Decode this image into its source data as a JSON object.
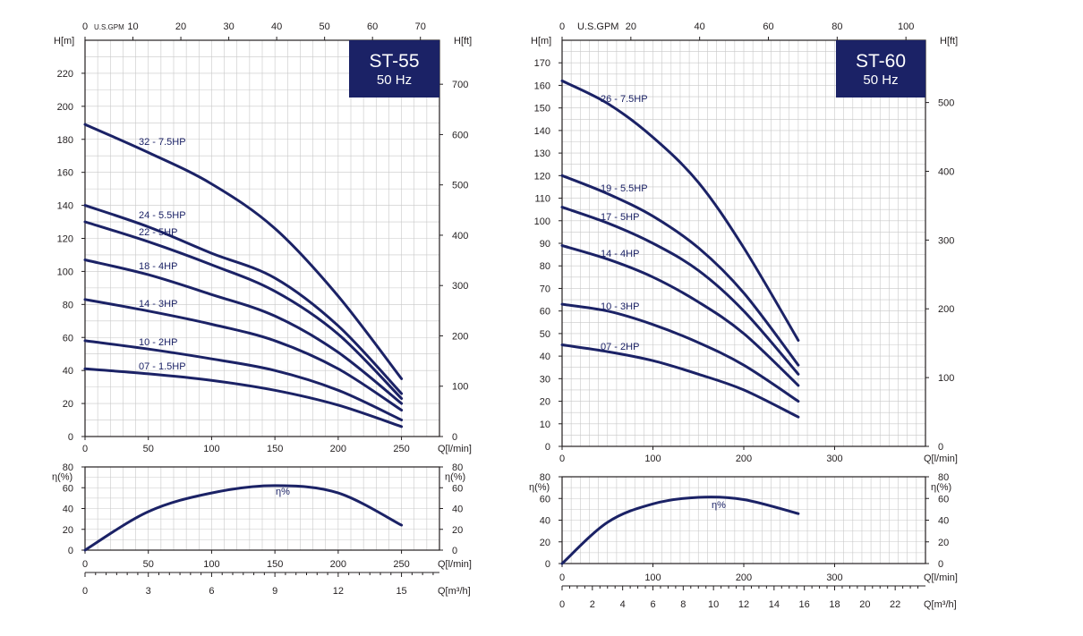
{
  "colors": {
    "curve": "#1b2266",
    "title_box": "#1b2266",
    "grid": "#c8c8c8",
    "axis": "#231f20"
  },
  "chart_data": [
    {
      "id": "st55",
      "type": "line",
      "title": "ST-55",
      "subtitle": "50 Hz",
      "xlabel": "Q[l/min]",
      "ylabel_left": "H[m]",
      "ylabel_right": "H[ft]",
      "xlabel_top": "U.S.GPM",
      "xlim": [
        0,
        280
      ],
      "ylim": [
        0,
        240
      ],
      "xticks": [
        0,
        50,
        100,
        150,
        200,
        250
      ],
      "yticks": [
        0,
        20,
        40,
        60,
        80,
        100,
        120,
        140,
        160,
        180,
        200,
        220
      ],
      "ft_ticks": [
        0,
        100,
        200,
        300,
        400,
        500,
        600,
        700
      ],
      "gpm_ticks": [
        0,
        10,
        20,
        30,
        40,
        50,
        60,
        70
      ],
      "grid": true,
      "series": [
        {
          "name": "32 - 7.5HP",
          "x": [
            0,
            50,
            100,
            150,
            200,
            250
          ],
          "y": [
            189,
            172,
            153,
            126,
            85,
            35
          ]
        },
        {
          "name": "24 - 5.5HP",
          "x": [
            0,
            50,
            100,
            150,
            200,
            250
          ],
          "y": [
            140,
            127,
            111,
            96,
            67,
            26
          ]
        },
        {
          "name": "22 - 5HP",
          "x": [
            0,
            50,
            100,
            150,
            200,
            250
          ],
          "y": [
            130,
            118,
            104,
            88,
            62,
            23
          ]
        },
        {
          "name": "18 - 4HP",
          "x": [
            0,
            50,
            100,
            150,
            200,
            250
          ],
          "y": [
            107,
            98,
            86,
            73,
            51,
            20
          ]
        },
        {
          "name": "14 - 3HP",
          "x": [
            0,
            50,
            100,
            150,
            200,
            250
          ],
          "y": [
            83,
            76,
            68,
            58,
            41,
            16
          ]
        },
        {
          "name": "10 - 2HP",
          "x": [
            0,
            50,
            100,
            150,
            200,
            250
          ],
          "y": [
            58,
            53,
            47,
            40,
            28,
            10
          ]
        },
        {
          "name": "07 - 1.5HP",
          "x": [
            0,
            50,
            100,
            150,
            200,
            250
          ],
          "y": [
            41,
            38,
            34,
            28,
            19,
            6
          ]
        }
      ],
      "efficiency": {
        "label": "η%",
        "ylabel": "η(%)",
        "ylim": [
          0,
          80
        ],
        "yticks": [
          0,
          20,
          40,
          60,
          80
        ],
        "x": [
          0,
          50,
          100,
          150,
          200,
          250
        ],
        "y": [
          0,
          37,
          55,
          62,
          55,
          24
        ]
      },
      "m3h_label": "Q[m³/h]",
      "m3h_ticks": [
        0,
        3,
        6,
        9,
        12,
        15
      ]
    },
    {
      "id": "st60",
      "type": "line",
      "title": "ST-60",
      "subtitle": "50 Hz",
      "xlabel": "Q[l/min]",
      "ylabel_left": "H[m]",
      "ylabel_right": "H[ft]",
      "xlabel_top": "U.S.GPM",
      "xlim": [
        0,
        400
      ],
      "ylim": [
        0,
        180
      ],
      "xticks": [
        0,
        100,
        200,
        300
      ],
      "yticks": [
        0,
        10,
        20,
        30,
        40,
        50,
        60,
        70,
        80,
        90,
        100,
        110,
        120,
        130,
        140,
        150,
        160,
        170
      ],
      "ft_ticks": [
        0,
        100,
        200,
        300,
        400,
        500
      ],
      "gpm_ticks": [
        0,
        20,
        40,
        60,
        80,
        100
      ],
      "grid": true,
      "series": [
        {
          "name": "26 - 7.5HP",
          "x": [
            0,
            50,
            100,
            150,
            200,
            260
          ],
          "y": [
            162,
            152,
            137,
            117,
            88,
            47
          ]
        },
        {
          "name": "19 - 5.5HP",
          "x": [
            0,
            50,
            100,
            150,
            200,
            260
          ],
          "y": [
            120,
            112,
            102,
            88,
            68,
            36
          ]
        },
        {
          "name": "17 - 5HP",
          "x": [
            0,
            50,
            100,
            150,
            200,
            260
          ],
          "y": [
            106,
            99,
            90,
            78,
            60,
            32
          ]
        },
        {
          "name": "14 - 4HP",
          "x": [
            0,
            50,
            100,
            150,
            200,
            260
          ],
          "y": [
            89,
            83,
            75,
            64,
            50,
            27
          ]
        },
        {
          "name": "10 - 3HP",
          "x": [
            0,
            50,
            100,
            150,
            200,
            260
          ],
          "y": [
            63,
            60,
            54,
            46,
            36,
            20
          ]
        },
        {
          "name": "07 - 2HP",
          "x": [
            0,
            50,
            100,
            150,
            200,
            260
          ],
          "y": [
            45,
            42,
            38,
            32,
            25,
            13
          ]
        }
      ],
      "efficiency": {
        "label": "η%",
        "ylabel": "η(%)",
        "ylim": [
          0,
          80
        ],
        "yticks": [
          0,
          20,
          40,
          60,
          80
        ],
        "x": [
          0,
          50,
          100,
          150,
          200,
          260
        ],
        "y": [
          0,
          38,
          55,
          61,
          59,
          46
        ]
      },
      "m3h_label": "Q[m³/h]",
      "m3h_ticks": [
        0,
        2,
        4,
        6,
        8,
        10,
        12,
        14,
        16,
        18,
        20,
        22
      ]
    }
  ]
}
